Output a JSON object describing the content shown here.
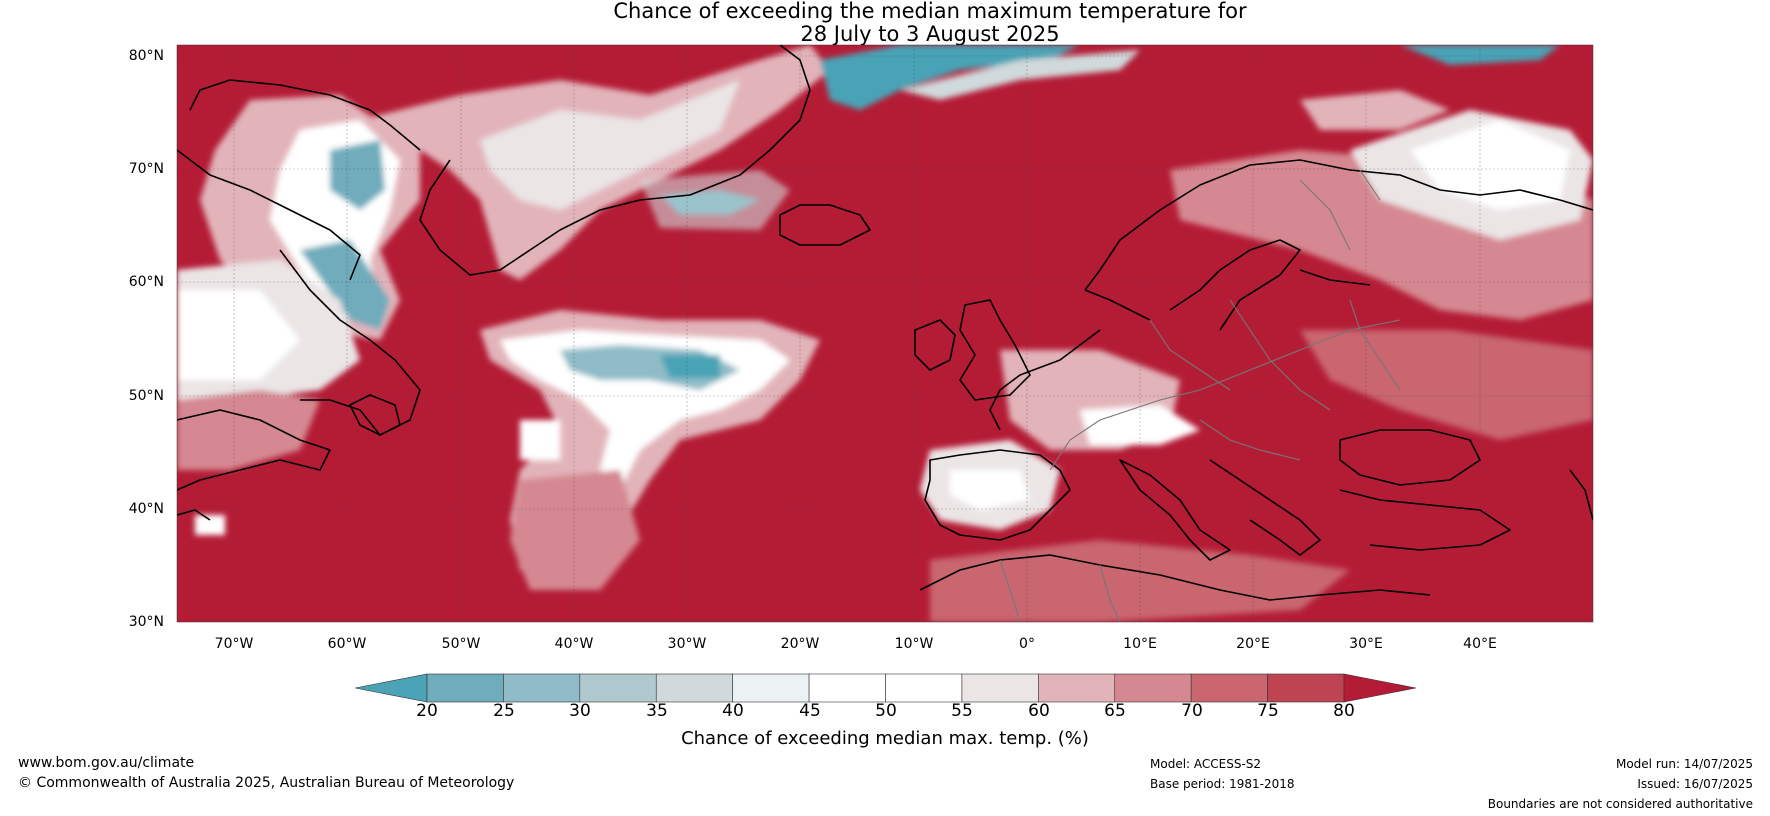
{
  "title": {
    "line1": "Chance of exceeding the median maximum temperature for",
    "line2": "28 July to 3 August 2025"
  },
  "map": {
    "region": "North Atlantic and Europe",
    "projection": "equirectangular",
    "lon_range_deg": [
      -75,
      50
    ],
    "lat_range_deg": [
      30,
      81
    ],
    "lat_ticks": [
      "30°N",
      "40°N",
      "50°N",
      "60°N",
      "70°N",
      "80°N"
    ],
    "lon_ticks": [
      "70°W",
      "60°W",
      "50°W",
      "40°W",
      "30°W",
      "20°W",
      "10°W",
      "0°",
      "10°E",
      "20°E",
      "30°E",
      "40°E"
    ],
    "dominant_category": ">80%",
    "features": [
      {
        "name": "Greenland interior",
        "category": "50-65%"
      },
      {
        "name": "Greenland Sea / Fram Strait",
        "category": "<25%"
      },
      {
        "name": "Central North Atlantic anomaly",
        "category": "25-55%"
      },
      {
        "name": "Iberia interior",
        "category": "45-60%"
      },
      {
        "name": "Alps",
        "category": "45-60%"
      },
      {
        "name": "Northern Scandinavia / Kola",
        "category": "50-65%"
      },
      {
        "name": "Labrador / Baffin",
        "category": "25-55%"
      }
    ]
  },
  "colorbar": {
    "ticks": [
      "20",
      "25",
      "30",
      "35",
      "40",
      "45",
      "50",
      "55",
      "60",
      "65",
      "70",
      "75",
      "80"
    ],
    "colors": [
      "#4aa3b6",
      "#6facbc",
      "#8fbcc8",
      "#afc9cf",
      "#d0d9db",
      "#ecf2f4",
      "#ffffff",
      "#ffffff",
      "#ebe5e6",
      "#e2b4ba",
      "#d58891",
      "#c96670",
      "#bf4452",
      "#b41c36"
    ],
    "label": "Chance of exceeding median max. temp. (%)"
  },
  "footer": {
    "website": "www.bom.gov.au/climate",
    "copyright": "© Commonwealth of Australia 2025, Australian Bureau of Meteorology",
    "model": "Model: ACCESS-S2",
    "base_period": "Base period: 1981-2018",
    "model_run": "Model run: 14/07/2025",
    "issued": "Issued: 16/07/2025",
    "disclaimer": "Boundaries are not considered authoritative"
  }
}
